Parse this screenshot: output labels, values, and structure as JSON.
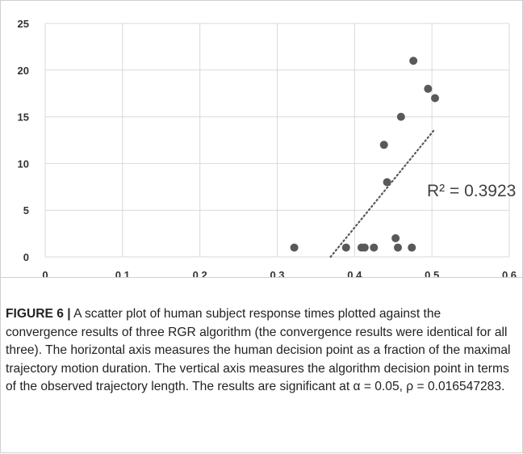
{
  "chart_data": {
    "type": "scatter",
    "title": "",
    "xlabel": "",
    "ylabel": "",
    "xlim": [
      0,
      0.6
    ],
    "ylim": [
      0,
      25
    ],
    "x_ticks": [
      "0",
      "0.1",
      "0.2",
      "0.3",
      "0.4",
      "0.5",
      "0.6"
    ],
    "y_ticks": [
      "0",
      "5",
      "10",
      "15",
      "20",
      "25"
    ],
    "grid": true,
    "points": [
      {
        "x": 0.322,
        "y": 1
      },
      {
        "x": 0.389,
        "y": 1
      },
      {
        "x": 0.409,
        "y": 1
      },
      {
        "x": 0.413,
        "y": 1
      },
      {
        "x": 0.425,
        "y": 1
      },
      {
        "x": 0.438,
        "y": 12
      },
      {
        "x": 0.442,
        "y": 8
      },
      {
        "x": 0.453,
        "y": 2
      },
      {
        "x": 0.456,
        "y": 1
      },
      {
        "x": 0.46,
        "y": 15
      },
      {
        "x": 0.474,
        "y": 1
      },
      {
        "x": 0.476,
        "y": 21
      },
      {
        "x": 0.495,
        "y": 18
      },
      {
        "x": 0.504,
        "y": 17
      }
    ],
    "trendline": {
      "style": "dotted",
      "from": {
        "x": 0.369,
        "y": 0
      },
      "to": {
        "x": 0.502,
        "y": 13.5
      }
    },
    "annotation": "R² = 0.3923",
    "marker_color": "#595959",
    "grid_color": "#d9d9d9",
    "trend_color": "#595959"
  },
  "caption": {
    "label": "FIGURE 6 |",
    "text": " A scatter plot of human subject response times plotted against the convergence results of three RGR algorithm (the convergence results were identical for all three). The horizontal axis measures the human decision point as a fraction of the maximal trajectory motion duration. The vertical axis measures the algorithm decision point in terms of the observed trajectory length. The results are significant at α = 0.05, ρ = 0.016547283."
  }
}
